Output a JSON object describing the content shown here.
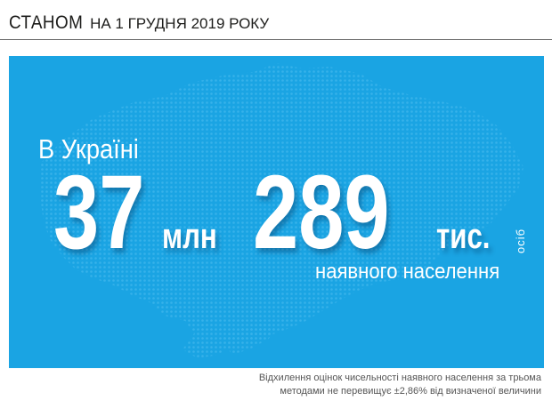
{
  "header": {
    "title_bold": "СТАНОМ",
    "title_rest": "НА 1 ГРУДНЯ 2019 РОКУ"
  },
  "card": {
    "country_label": "В Україні",
    "millions_value": "37",
    "millions_unit": "млн",
    "thousands_value": "289",
    "thousands_unit": "тис.",
    "persons_label": "осіб",
    "description": "наявного населення",
    "background_color": "#1aa4e3",
    "map_icon": "ukraine-map-icon"
  },
  "note": {
    "line1": "Відхилення оцінок чисельності наявного населення за трьома",
    "line2": "методами не перевищує ±2,86% від визначеної величини"
  }
}
